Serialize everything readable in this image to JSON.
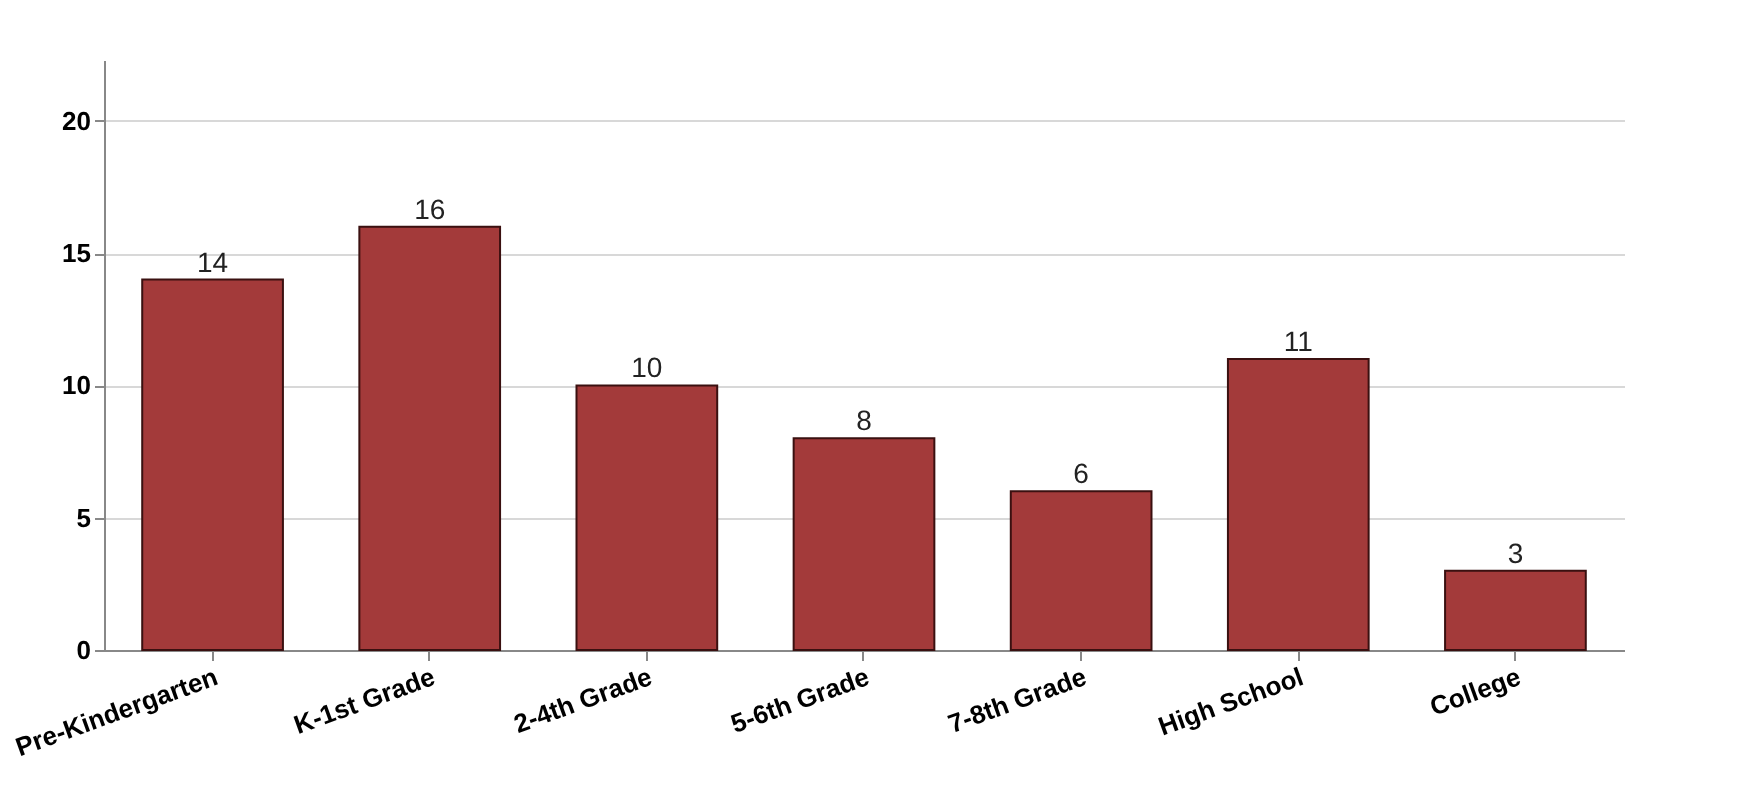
{
  "chart_data": {
    "type": "bar",
    "categories": [
      "Pre-Kindergarten",
      "K-1st Grade",
      "2-4th Grade",
      "5-6th Grade",
      "7-8th Grade",
      "High School",
      "College"
    ],
    "values": [
      14,
      16,
      10,
      8,
      6,
      11,
      3
    ],
    "color": "#a33a3a",
    "ylim": [
      0,
      22.3
    ],
    "yticks": [
      0,
      5,
      10,
      15,
      20
    ],
    "grid": "y",
    "data_labels": true
  }
}
